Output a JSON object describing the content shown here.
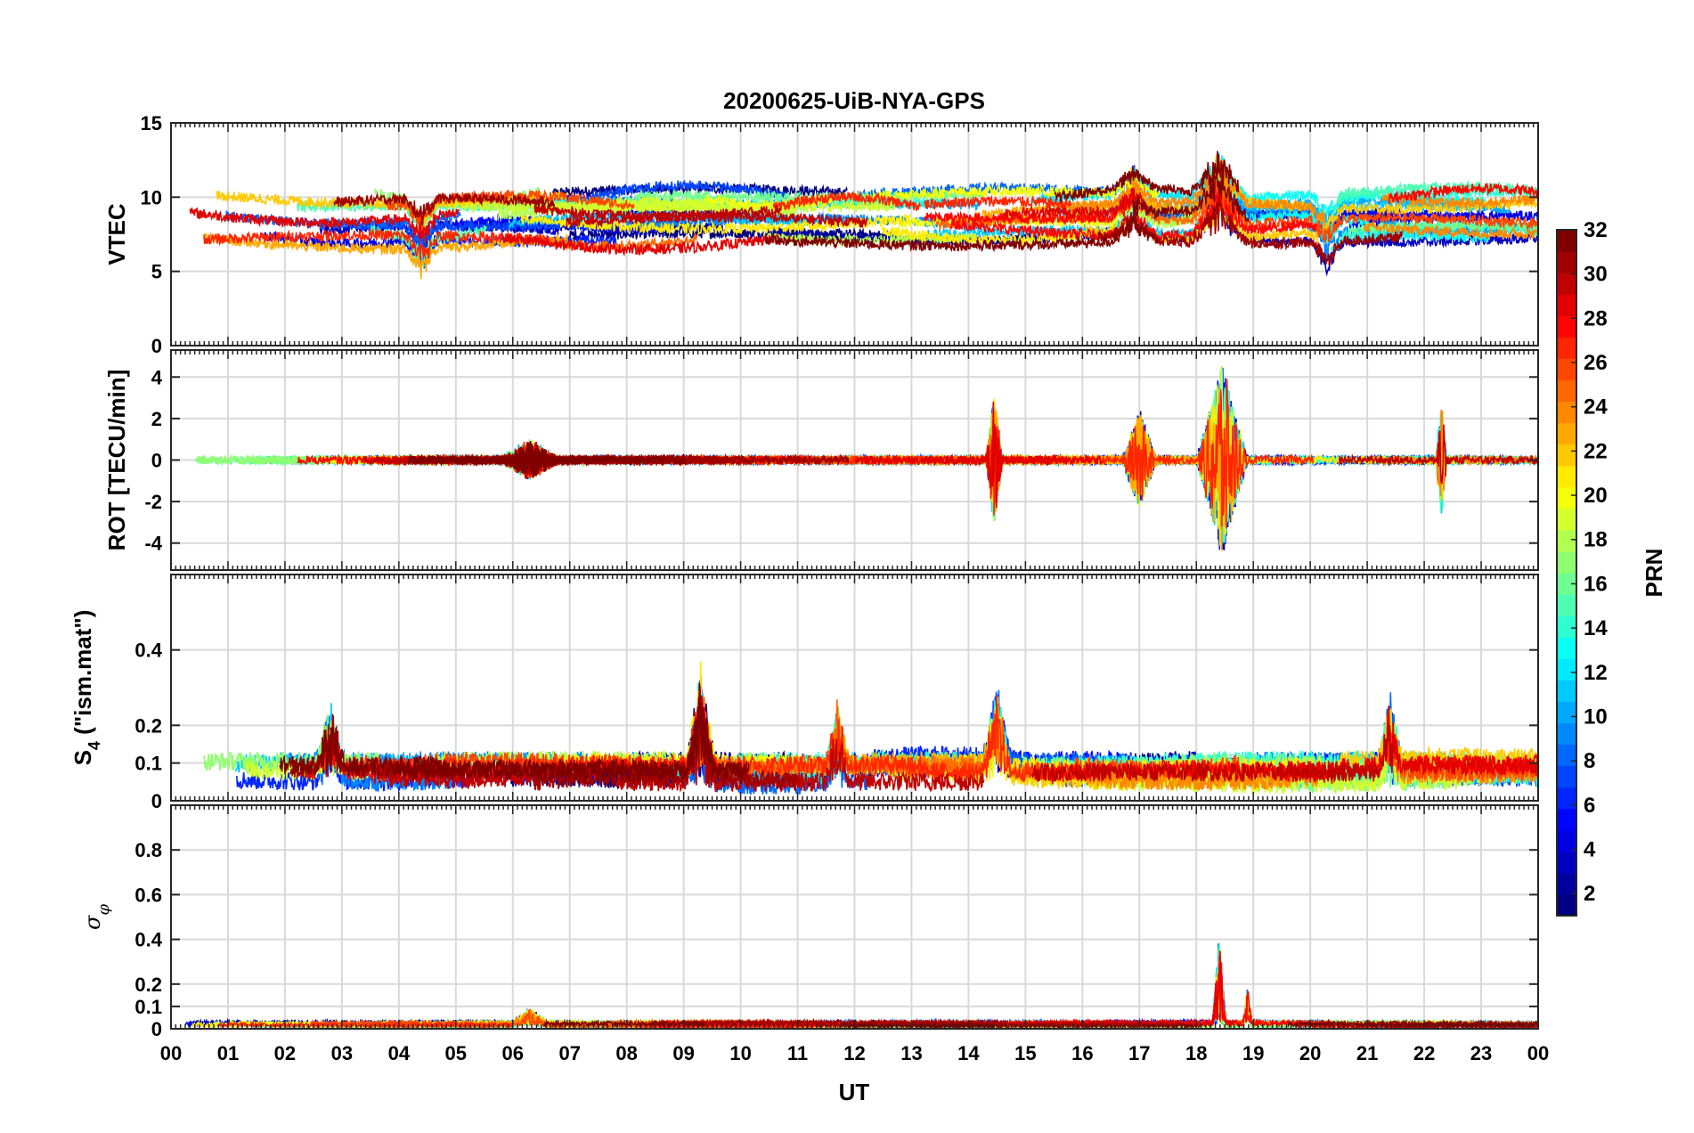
{
  "chart_data": {
    "type": "line",
    "title": "20200625-UiB-NYA-GPS",
    "xlabel": "UT",
    "x_ticks": [
      "00",
      "01",
      "02",
      "03",
      "04",
      "05",
      "06",
      "07",
      "08",
      "09",
      "10",
      "11",
      "12",
      "13",
      "14",
      "15",
      "16",
      "17",
      "18",
      "19",
      "20",
      "21",
      "22",
      "23",
      "00"
    ],
    "xlim": [
      0,
      24
    ],
    "colorbar": {
      "label": "PRN",
      "range": [
        1,
        32
      ],
      "ticks": [
        "2",
        "4",
        "6",
        "8",
        "10",
        "12",
        "14",
        "16",
        "18",
        "20",
        "22",
        "24",
        "26",
        "28",
        "30",
        "32"
      ],
      "colormap": "jet"
    },
    "panels": [
      {
        "id": "vtec",
        "ylabel": "VTEC",
        "ylim": [
          0,
          15
        ],
        "yticks": [
          0,
          5,
          10,
          15
        ],
        "ytick_labels": [
          "0",
          "5",
          "10",
          "15"
        ],
        "baseline": 8.7,
        "spread": 1.6,
        "noise": 0.35,
        "events": [
          {
            "t": 18.4,
            "width": 0.5,
            "amp": 3.0
          },
          {
            "t": 16.9,
            "width": 0.4,
            "amp": 1.8
          },
          {
            "t": 20.3,
            "width": 0.3,
            "amp": -2.0
          },
          {
            "t": 4.4,
            "width": 0.3,
            "amp": -2.0
          }
        ]
      },
      {
        "id": "rot",
        "ylabel": "ROT [TECU/min]",
        "ylim": [
          -5.3,
          5.3
        ],
        "yticks": [
          -4,
          -2,
          0,
          2,
          4
        ],
        "ytick_labels": [
          "-4",
          "-2",
          "0",
          "2",
          "4"
        ],
        "baseline": 0.0,
        "spread": 0.0,
        "noise": 0.2,
        "events": [
          {
            "t": 18.45,
            "width": 0.45,
            "amp": 4.7
          },
          {
            "t": 14.45,
            "width": 0.15,
            "amp": 3.2
          },
          {
            "t": 17.0,
            "width": 0.3,
            "amp": 2.4
          },
          {
            "t": 22.3,
            "width": 0.1,
            "amp": 2.9
          },
          {
            "t": 6.3,
            "width": 0.5,
            "amp": 0.9
          }
        ]
      },
      {
        "id": "s4",
        "ylabel": "S4 (\"ism.mat\")",
        "ylim": [
          0,
          0.6
        ],
        "yticks": [
          0,
          0.1,
          0.2,
          0.4
        ],
        "ytick_labels": [
          "0",
          "0.1",
          "0.2",
          "0.4"
        ],
        "baseline": 0.08,
        "spread": 0.03,
        "noise": 0.025,
        "events": [
          {
            "t": 9.3,
            "width": 0.25,
            "amp": 0.25
          },
          {
            "t": 14.5,
            "width": 0.25,
            "amp": 0.2
          },
          {
            "t": 21.4,
            "width": 0.2,
            "amp": 0.17
          },
          {
            "t": 11.7,
            "width": 0.2,
            "amp": 0.17
          },
          {
            "t": 2.8,
            "width": 0.25,
            "amp": 0.16
          }
        ]
      },
      {
        "id": "sigphi",
        "ylabel": "σφ",
        "ylim": [
          0,
          1
        ],
        "yticks": [
          0,
          0.1,
          0.2,
          0.4,
          0.6,
          0.8
        ],
        "ytick_labels": [
          "0",
          "0.1",
          "0.2",
          "0.4",
          "0.6",
          "0.8"
        ],
        "baseline": 0.02,
        "spread": 0.008,
        "noise": 0.01,
        "events": [
          {
            "t": 18.4,
            "width": 0.12,
            "amp": 0.4
          },
          {
            "t": 18.9,
            "width": 0.08,
            "amp": 0.17
          },
          {
            "t": 6.3,
            "width": 0.3,
            "amp": 0.07
          }
        ]
      }
    ]
  }
}
